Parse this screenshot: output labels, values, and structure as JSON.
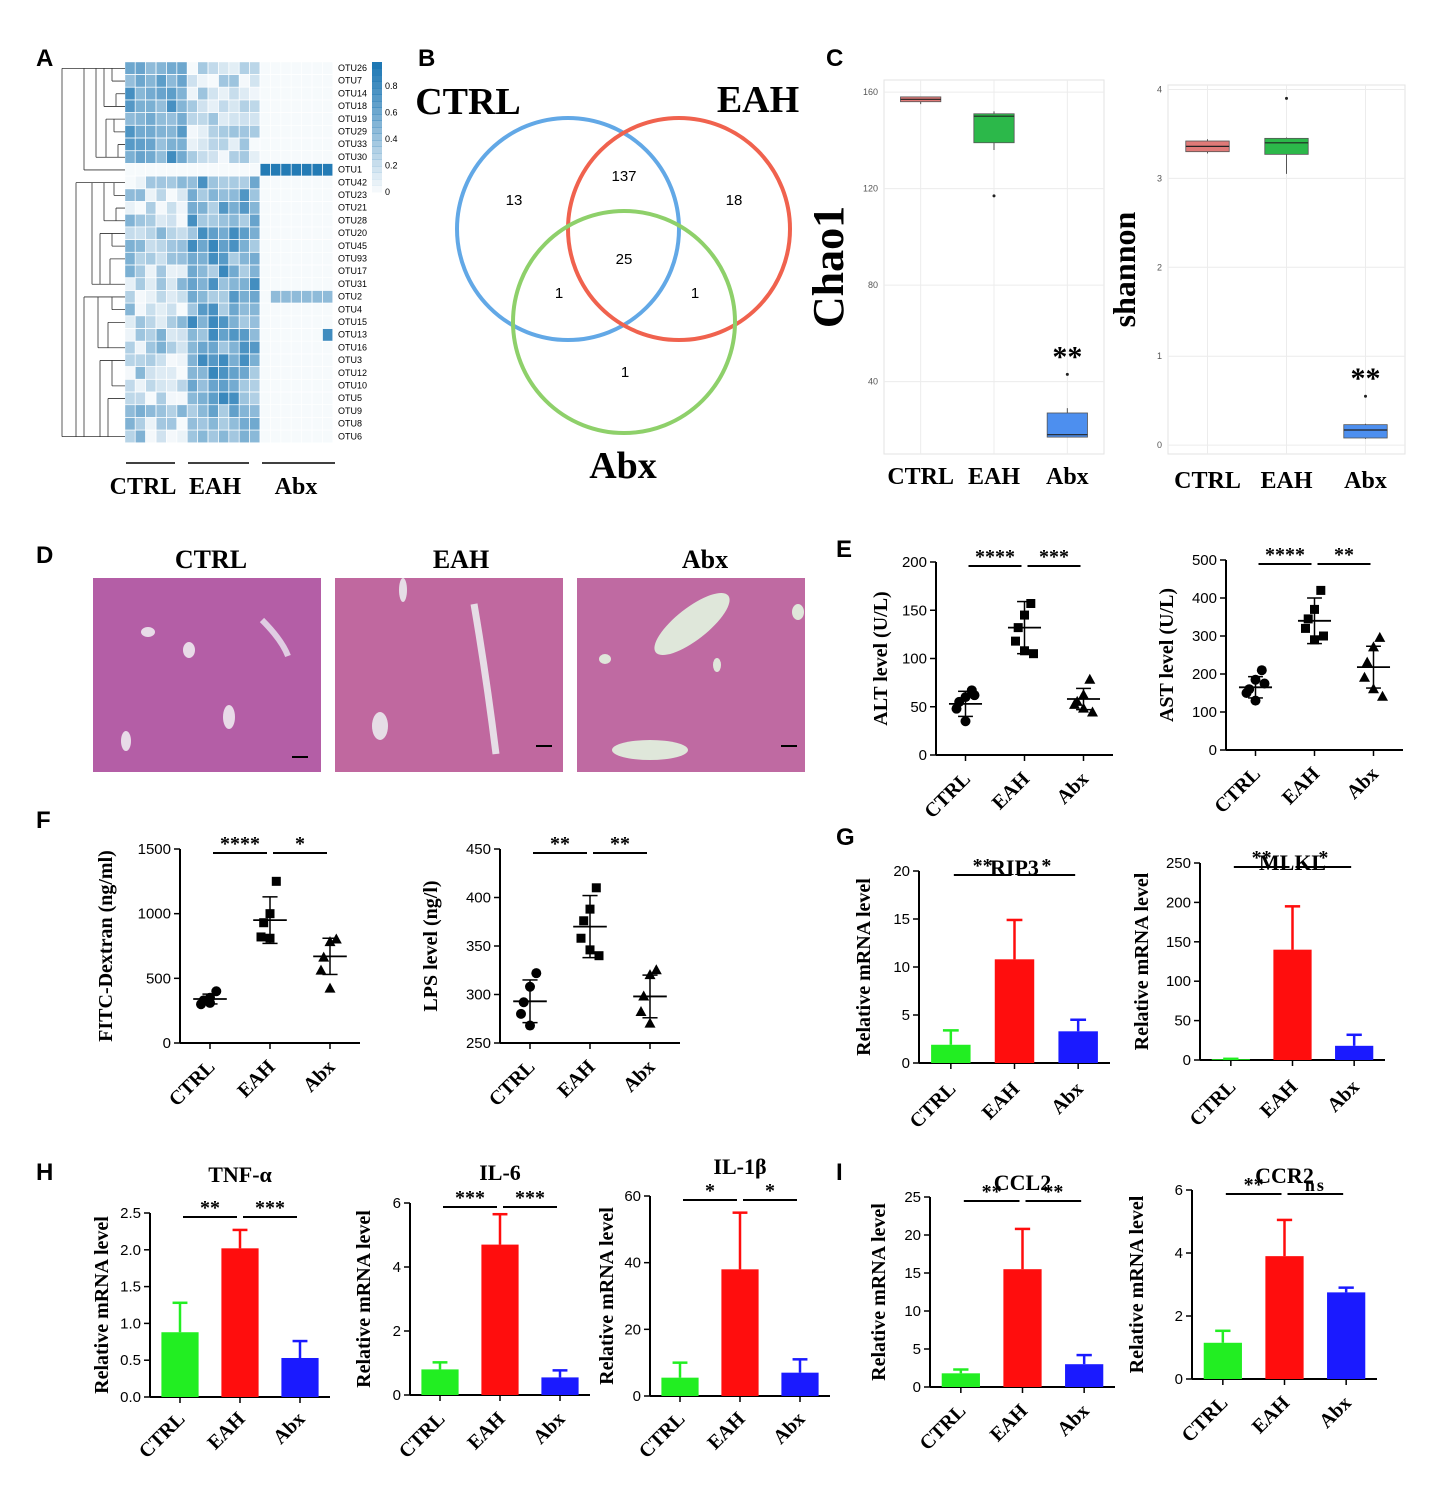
{
  "colors": {
    "ctrl": "#22ee22",
    "eah": "#ff0d0d",
    "abx": "#1a1aff",
    "venn_ctrl": "#62a8e6",
    "venn_eah": "#f0624e",
    "venn_abx": "#8ed06a",
    "heat": "#1f78b4",
    "he": "#b45ea6",
    "boxCtrl": "#e07a78",
    "boxEah": "#2cb84a",
    "boxAbx": "#4d8fef"
  },
  "panels": {
    "A": "A",
    "B": "B",
    "C": "C",
    "D": "D",
    "E": "E",
    "F": "F",
    "G": "G",
    "H": "H",
    "I": "I"
  },
  "groups": [
    "CTRL",
    "EAH",
    "Abx"
  ],
  "heatmap": {
    "otus": [
      "OTU26",
      "OTU7",
      "OTU14",
      "OTU18",
      "OTU19",
      "OTU29",
      "OTU33",
      "OTU30",
      "OTU1",
      "OTU42",
      "OTU23",
      "OTU21",
      "OTU28",
      "OTU20",
      "OTU45",
      "OTU93",
      "OTU17",
      "OTU31",
      "OTU2",
      "OTU4",
      "OTU15",
      "OTU13",
      "OTU16",
      "OTU3",
      "OTU12",
      "OTU10",
      "OTU5",
      "OTU9",
      "OTU8",
      "OTU6"
    ],
    "colorbar_ticks": [
      "0.8",
      "0.6",
      "0.4",
      "0.2",
      "0"
    ]
  },
  "venn": {
    "labels": {
      "ctrl": "CTRL",
      "eah": "EAH",
      "abx": "Abx"
    },
    "counts": {
      "ctrl_only": "13",
      "eah_only": "18",
      "abx_only": "1",
      "ctrl_eah": "137",
      "ctrl_abx": "1",
      "eah_abx": "1",
      "all": "25"
    }
  },
  "histology": {
    "titles": [
      "CTRL",
      "EAH",
      "Abx"
    ]
  },
  "chart_data": [
    {
      "id": "C1",
      "type": "box",
      "ylabel": "Chao1",
      "categories": [
        "CTRL",
        "EAH",
        "Abx"
      ],
      "ylim": [
        10,
        165
      ],
      "yticks": [
        40,
        80,
        120,
        160
      ],
      "boxes": [
        {
          "q1": 156,
          "median": 157,
          "q3": 158,
          "min": 155,
          "max": 158
        },
        {
          "q1": 139,
          "median": 150,
          "q3": 151,
          "min": 136,
          "max": 152,
          "outliers": [
            117
          ]
        },
        {
          "q1": 17,
          "median": 18,
          "q3": 27,
          "min": 17,
          "max": 29,
          "outliers": [
            43
          ]
        }
      ],
      "annotation": "**"
    },
    {
      "id": "C2",
      "type": "box",
      "ylabel": "shannon",
      "categories": [
        "CTRL",
        "EAH",
        "Abx"
      ],
      "ylim": [
        -0.1,
        4.05
      ],
      "yticks": [
        0,
        1,
        2,
        3,
        4
      ],
      "boxes": [
        {
          "q1": 3.3,
          "median": 3.36,
          "q3": 3.42,
          "min": 3.28,
          "max": 3.44
        },
        {
          "q1": 3.27,
          "median": 3.4,
          "q3": 3.45,
          "min": 3.05,
          "max": 3.46,
          "outliers": [
            3.9
          ]
        },
        {
          "q1": 0.08,
          "median": 0.17,
          "q3": 0.23,
          "min": 0.07,
          "max": 0.24,
          "outliers": [
            0.55
          ]
        }
      ],
      "annotation": "**"
    },
    {
      "id": "E1",
      "type": "scatter",
      "ylabel": "ALT level (U/L)",
      "categories": [
        "CTRL",
        "EAH",
        "Abx"
      ],
      "ylim": [
        0,
        200
      ],
      "yticks": [
        0,
        50,
        100,
        150,
        200
      ],
      "points": [
        [
          67,
          60,
          55,
          48,
          35,
          62
        ],
        [
          157,
          145,
          132,
          118,
          108,
          105
        ],
        [
          78,
          62,
          55,
          52,
          48,
          44
        ]
      ],
      "mean": [
        53,
        132,
        58
      ],
      "sd": [
        13,
        27,
        11
      ],
      "sig": [
        "****",
        "***"
      ]
    },
    {
      "id": "E2",
      "type": "scatter",
      "ylabel": "AST level (U/L)",
      "categories": [
        "CTRL",
        "EAH",
        "Abx"
      ],
      "ylim": [
        0,
        500
      ],
      "yticks": [
        0,
        100,
        200,
        300,
        400,
        500
      ],
      "points": [
        [
          210,
          185,
          160,
          150,
          130,
          175
        ],
        [
          420,
          370,
          345,
          320,
          290,
          300
        ],
        [
          295,
          270,
          230,
          190,
          160,
          140
        ]
      ],
      "mean": [
        165,
        340,
        218
      ],
      "sd": [
        28,
        60,
        55
      ],
      "sig": [
        "****",
        "**"
      ]
    },
    {
      "id": "F1",
      "type": "scatter",
      "ylabel": "FITC-Dextran (ng/ml)",
      "categories": [
        "CTRL",
        "EAH",
        "Abx"
      ],
      "ylim": [
        0,
        1500
      ],
      "yticks": [
        0,
        500,
        1000,
        1500
      ],
      "points": [
        [
          400,
          350,
          330,
          300,
          310
        ],
        [
          1250,
          1000,
          930,
          820,
          810
        ],
        [
          800,
          780,
          660,
          560,
          420
        ]
      ],
      "mean": [
        340,
        950,
        670
      ],
      "sd": [
        38,
        180,
        140
      ],
      "sig": [
        "****",
        "*"
      ]
    },
    {
      "id": "F2",
      "type": "scatter",
      "ylabel": "LPS level (ng/l)",
      "categories": [
        "CTRL",
        "EAH",
        "Abx"
      ],
      "ylim": [
        250,
        450
      ],
      "yticks": [
        250,
        300,
        350,
        400,
        450
      ],
      "points": [
        [
          322,
          308,
          292,
          280,
          268
        ],
        [
          410,
          388,
          376,
          358,
          346,
          340
        ],
        [
          325,
          320,
          298,
          282,
          270
        ]
      ],
      "mean": [
        293,
        370,
        298
      ],
      "sd": [
        22,
        32,
        22
      ],
      "sig": [
        "**",
        "**"
      ]
    },
    {
      "id": "G1",
      "type": "bar",
      "title": "RIP3",
      "ylabel": "Relative mRNA level",
      "categories": [
        "CTRL",
        "EAH",
        "Abx"
      ],
      "values": [
        1.9,
        10.8,
        3.3
      ],
      "err": [
        1.5,
        4.1,
        1.2
      ],
      "ylim": [
        0,
        20
      ],
      "yticks": [
        0,
        5,
        10,
        15,
        20
      ],
      "sig": [
        "**",
        "*"
      ]
    },
    {
      "id": "G2",
      "type": "bar",
      "title": "MLKL",
      "ylabel": "Relative mRNA level",
      "categories": [
        "CTRL",
        "EAH",
        "Abx"
      ],
      "values": [
        1,
        140,
        18
      ],
      "err": [
        0.5,
        55,
        14
      ],
      "ylim": [
        0,
        250
      ],
      "yticks": [
        0,
        50,
        100,
        150,
        200,
        250
      ],
      "sig": [
        "**",
        "*"
      ]
    },
    {
      "id": "H1",
      "type": "bar",
      "title": "TNF-α",
      "ylabel": "Relative mRNA level",
      "categories": [
        "CTRL",
        "EAH",
        "Abx"
      ],
      "values": [
        0.88,
        2.02,
        0.53
      ],
      "err": [
        0.4,
        0.25,
        0.23
      ],
      "ylim": [
        0,
        2.5
      ],
      "yticks": [
        0,
        0.5,
        1.0,
        1.5,
        2.0,
        2.5
      ],
      "tickfmt": 1,
      "sig": [
        "**",
        "***"
      ]
    },
    {
      "id": "H2",
      "type": "bar",
      "title": "IL-6",
      "ylabel": "Relative mRNA level",
      "categories": [
        "CTRL",
        "EAH",
        "Abx"
      ],
      "values": [
        0.8,
        4.7,
        0.55
      ],
      "err": [
        0.22,
        0.95,
        0.22
      ],
      "ylim": [
        0,
        6
      ],
      "yticks": [
        0,
        2,
        4,
        6
      ],
      "sig": [
        "***",
        "***"
      ]
    },
    {
      "id": "H3",
      "type": "bar",
      "title": "IL-1β",
      "ylabel": "Relative mRNA level",
      "categories": [
        "CTRL",
        "EAH",
        "Abx"
      ],
      "values": [
        5.5,
        38,
        7
      ],
      "err": [
        4.5,
        17,
        4
      ],
      "ylim": [
        0,
        60
      ],
      "yticks": [
        0,
        20,
        40,
        60
      ],
      "sig": [
        "*",
        "*"
      ]
    },
    {
      "id": "I1",
      "type": "bar",
      "title": "CCL2",
      "ylabel": "Relative mRNA level",
      "categories": [
        "CTRL",
        "EAH",
        "Abx"
      ],
      "values": [
        1.8,
        15.5,
        3
      ],
      "err": [
        0.5,
        5.3,
        1.2
      ],
      "ylim": [
        0,
        25
      ],
      "yticks": [
        0,
        5,
        10,
        15,
        20,
        25
      ],
      "sig": [
        "**",
        "**"
      ]
    },
    {
      "id": "I2",
      "type": "bar",
      "title": "CCR2",
      "ylabel": "Relative mRNA level",
      "categories": [
        "CTRL",
        "EAH",
        "Abx"
      ],
      "values": [
        1.15,
        3.9,
        2.75
      ],
      "err": [
        0.38,
        1.15,
        0.15
      ],
      "ylim": [
        0,
        6
      ],
      "yticks": [
        0,
        2,
        4,
        6
      ],
      "sig": [
        "**",
        "ns"
      ]
    }
  ]
}
